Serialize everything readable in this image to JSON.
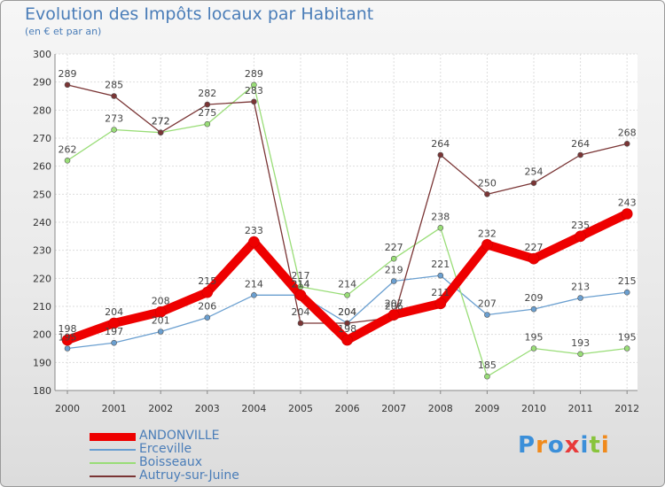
{
  "chart_data": {
    "type": "line",
    "title": "Evolution des Impôts locaux par Habitant",
    "subtitle": "(en € et par an)",
    "categories": [
      "2000",
      "2001",
      "2002",
      "2003",
      "2004",
      "2005",
      "2006",
      "2007",
      "2008",
      "2009",
      "2010",
      "2011",
      "2012"
    ],
    "ylim": [
      180,
      300
    ],
    "ytick_step": 10,
    "grid": true,
    "legend_position": "bottom-left",
    "series": [
      {
        "name": "ANDONVILLE",
        "color": "#ee0000",
        "values": [
          198,
          204,
          208,
          215,
          233,
          214,
          198,
          207,
          211,
          232,
          227,
          235,
          243
        ],
        "labels": [
          "198",
          "204",
          "208",
          "215",
          "233",
          "214",
          "198",
          "207",
          "211",
          "232",
          "227",
          "235",
          "243"
        ]
      },
      {
        "name": "Erceville",
        "color": "#6a9fd0",
        "values": [
          195,
          197,
          201,
          206,
          214,
          214,
          204,
          219,
          221,
          207,
          209,
          213,
          215
        ],
        "labels": [
          "195",
          "197",
          "201",
          "206",
          "214",
          "214",
          "204",
          "219",
          "221",
          "207",
          "209",
          "213",
          "215"
        ]
      },
      {
        "name": "Boisseaux",
        "color": "#99dd77",
        "values": [
          262,
          273,
          272,
          275,
          289,
          217,
          214,
          227,
          238,
          185,
          195,
          193,
          195
        ],
        "labels": [
          "262",
          "273",
          "272",
          "275",
          "289",
          "217",
          "214",
          "227",
          "238",
          "185",
          "195",
          "193",
          "195"
        ]
      },
      {
        "name": "Autruy-sur-Juine",
        "color": "#7a3535",
        "values": [
          289,
          285,
          272,
          282,
          283,
          204,
          204,
          206,
          264,
          250,
          254,
          264,
          268
        ],
        "labels": [
          "289",
          "285",
          "272",
          "282",
          "283",
          "204",
          "204",
          "206",
          "264",
          "250",
          "254",
          "264",
          "268"
        ]
      }
    ]
  },
  "logo": {
    "text": "Proxiti",
    "colors": [
      "#3b8fd9",
      "#f08a1c",
      "#3b8fd9",
      "#e83a3a",
      "#3b8fd9",
      "#88c43c",
      "#f08a1c"
    ]
  }
}
